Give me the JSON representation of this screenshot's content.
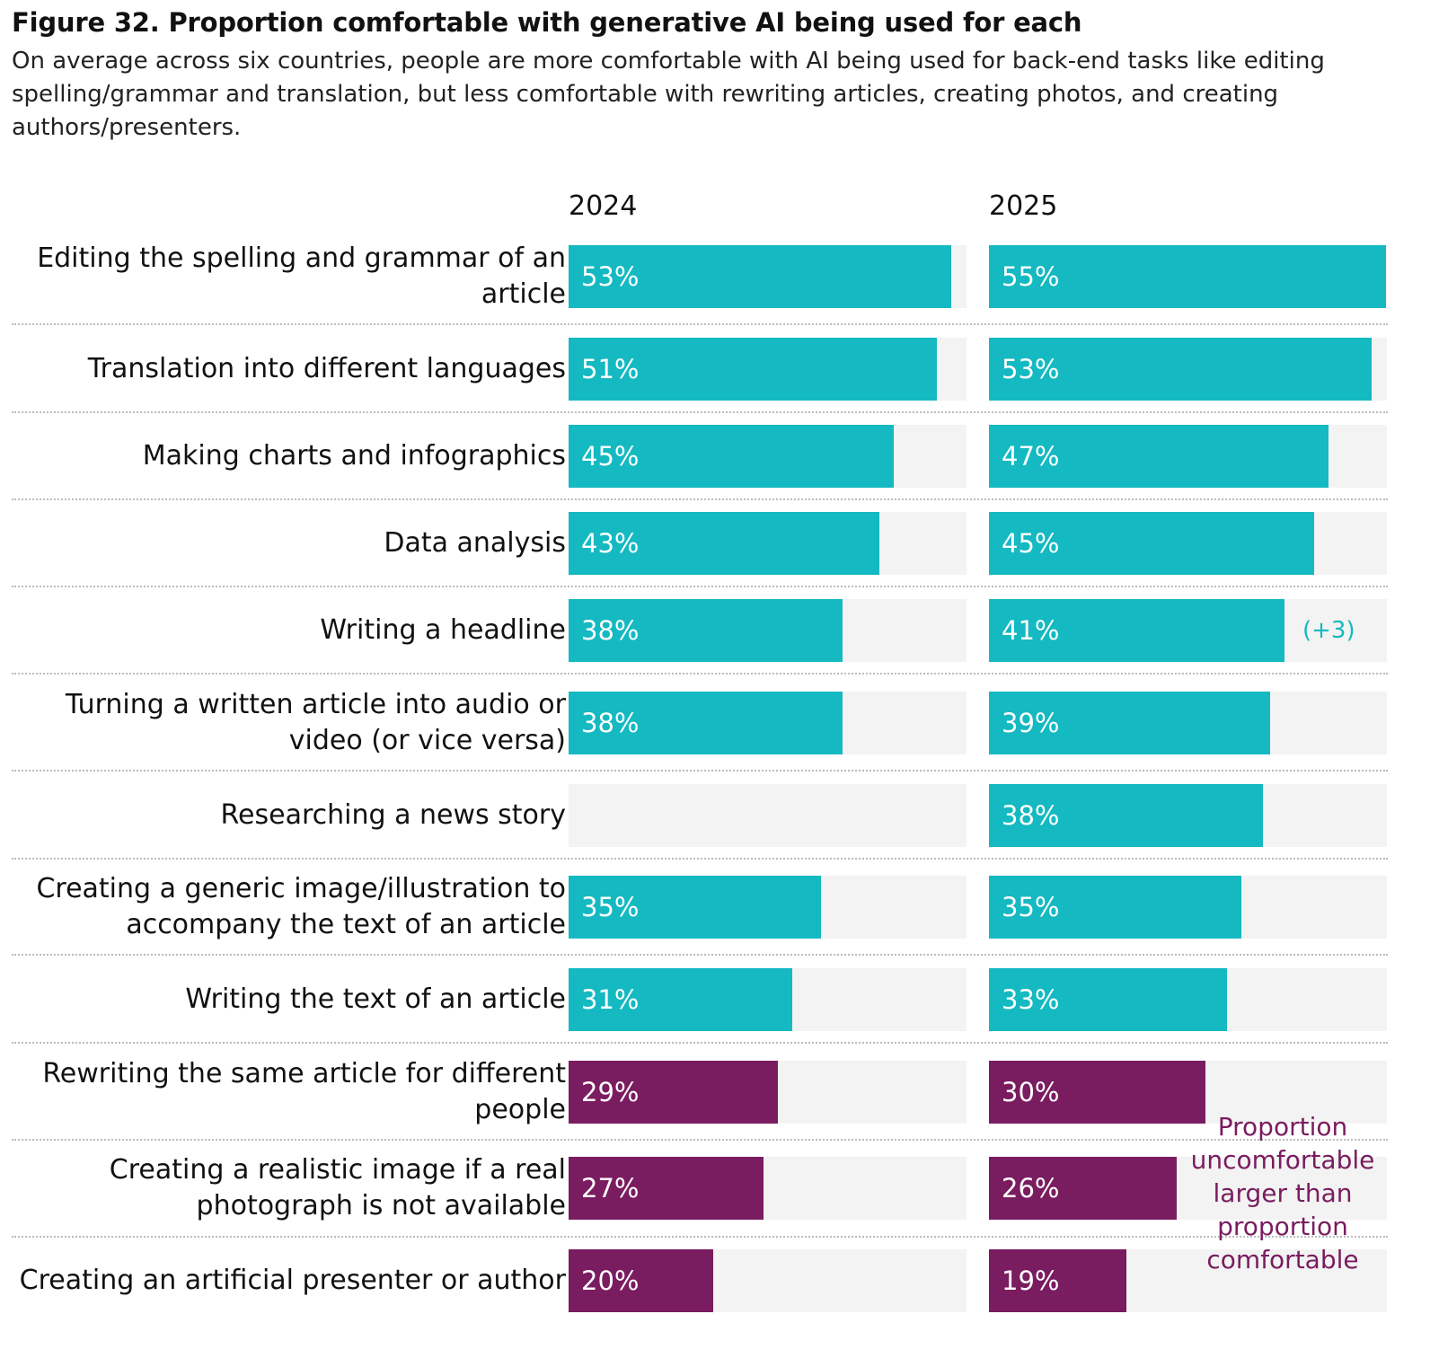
{
  "title": "Figure 32. Proportion comfortable with generative AI being used for each",
  "subtitle": "On average across six countries, people are more comfortable with AI being used for back-end tasks like editing spelling/grammar and translation, but less comfortable with rewriting articles, creating photos, and creating authors/presenters.",
  "colors": {
    "comfortable": "#14b9c1",
    "uncomfortable": "#7a1c60",
    "track": "#f2f3f2"
  },
  "chart_data": {
    "type": "bar",
    "orientation": "horizontal",
    "title": "Figure 32. Proportion comfortable with generative AI being used for each",
    "panels": [
      "2024",
      "2025"
    ],
    "xlim": [
      0,
      55
    ],
    "categories": [
      "Editing the spelling and grammar of an article",
      "Translation into different languages",
      "Making charts and infographics",
      "Data analysis",
      "Writing a headline",
      "Turning a written article into audio or video (or vice versa)",
      "Researching a news story",
      "Creating a generic image/illustration to accompany the text of an article",
      "Writing the text of an article",
      "Rewriting the same article for different people",
      "Creating a realistic image if a real photograph is not available",
      "Creating an artificial presenter or author"
    ],
    "series": [
      {
        "name": "2024",
        "values": [
          53,
          51,
          45,
          43,
          38,
          38,
          null,
          35,
          31,
          29,
          27,
          20
        ],
        "labels": [
          "53%",
          "51%",
          "45%",
          "43%",
          "38%",
          "38%",
          "",
          "35%",
          "31%",
          "29%",
          "27%",
          "20%"
        ]
      },
      {
        "name": "2025",
        "values": [
          55,
          53,
          47,
          45,
          41,
          39,
          38,
          35,
          33,
          30,
          26,
          19
        ],
        "labels": [
          "55%",
          "53%",
          "47%",
          "45%",
          "41%",
          "39%",
          "38%",
          "35%",
          "33%",
          "30%",
          "26%",
          "19%"
        ]
      }
    ],
    "uncomfortable_larger": [
      false,
      false,
      false,
      false,
      false,
      false,
      false,
      false,
      false,
      true,
      true,
      true
    ],
    "annotations": [
      {
        "panel": "2025",
        "category": "Writing a headline",
        "text": "(+3)"
      },
      {
        "panel": "2025",
        "category": "Rewriting the same article for different people",
        "text": "Proportion uncomfortable larger than proportion comfortable"
      }
    ]
  }
}
